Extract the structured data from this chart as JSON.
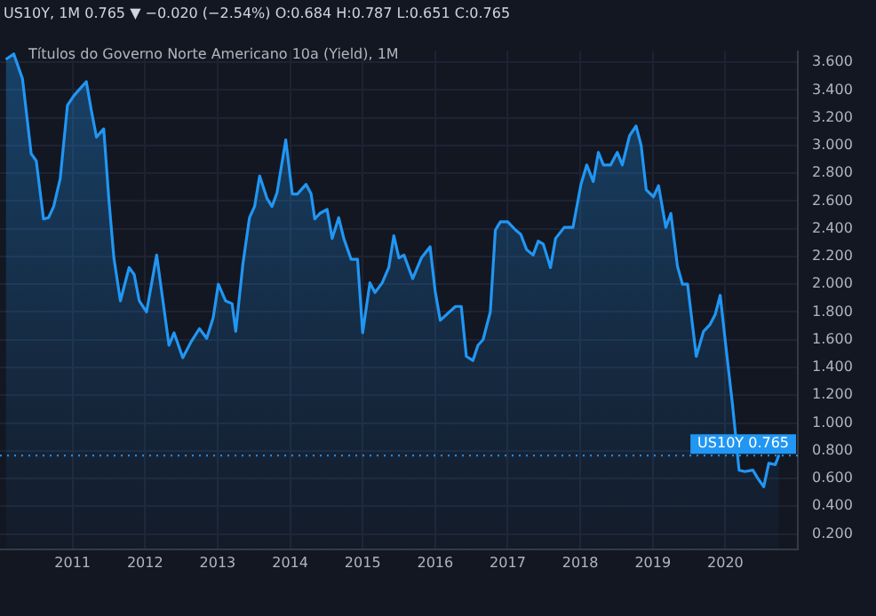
{
  "chart_data": {
    "type": "area",
    "title": "US10Y, 1M 0.765 ▼ −0.020 (−2.54%) O:0.684 H:0.787 L:0.651 C:0.765",
    "subtitle": "Títulos do Governo Norte Americano 10a (Yield), 1M",
    "x": [
      2010.08,
      2010.19,
      2010.31,
      2010.43,
      2010.5,
      2010.6,
      2010.67,
      2010.74,
      2010.83,
      2010.93,
      2011.02,
      2011.19,
      2011.26,
      2011.33,
      2011.43,
      2011.5,
      2011.57,
      2011.66,
      2011.78,
      2011.85,
      2011.92,
      2012.02,
      2012.16,
      2012.33,
      2012.4,
      2012.52,
      2012.64,
      2012.75,
      2012.85,
      2012.94,
      2013.01,
      2013.11,
      2013.2,
      2013.25,
      2013.35,
      2013.44,
      2013.51,
      2013.58,
      2013.68,
      2013.75,
      2013.82,
      2013.94,
      2014.03,
      2014.1,
      2014.22,
      2014.29,
      2014.34,
      2014.41,
      2014.51,
      2014.58,
      2014.67,
      2014.74,
      2014.84,
      2014.93,
      2015.0,
      2015.1,
      2015.17,
      2015.27,
      2015.36,
      2015.43,
      2015.5,
      2015.57,
      2015.69,
      2015.81,
      2015.93,
      2016.0,
      2016.07,
      2016.28,
      2016.36,
      2016.43,
      2016.52,
      2016.59,
      2016.66,
      2016.76,
      2016.83,
      2016.9,
      2017.0,
      2017.11,
      2017.18,
      2017.26,
      2017.35,
      2017.42,
      2017.49,
      2017.59,
      2017.66,
      2017.78,
      2017.9,
      2018.01,
      2018.09,
      2018.18,
      2018.25,
      2018.32,
      2018.42,
      2018.51,
      2018.58,
      2018.68,
      2018.77,
      2018.84,
      2018.91,
      2019.01,
      2019.08,
      2019.18,
      2019.25,
      2019.34,
      2019.41,
      2019.48,
      2019.6,
      2019.7,
      2019.79,
      2019.86,
      2019.93,
      2020.03,
      2020.1,
      2020.19,
      2020.27,
      2020.38,
      2020.45,
      2020.53,
      2020.6,
      2020.69,
      2020.74
    ],
    "series": [
      {
        "color": "#2196f3",
        "values": [
          3.62,
          3.66,
          3.48,
          2.94,
          2.89,
          2.47,
          2.48,
          2.56,
          2.76,
          3.29,
          3.36,
          3.46,
          3.25,
          3.06,
          3.12,
          2.62,
          2.19,
          1.88,
          2.12,
          2.07,
          1.88,
          1.8,
          2.21,
          1.56,
          1.65,
          1.47,
          1.59,
          1.68,
          1.61,
          1.76,
          2.0,
          1.88,
          1.86,
          1.66,
          2.15,
          2.48,
          2.56,
          2.78,
          2.62,
          2.56,
          2.66,
          3.04,
          2.65,
          2.65,
          2.72,
          2.65,
          2.47,
          2.51,
          2.54,
          2.33,
          2.48,
          2.33,
          2.18,
          2.18,
          1.65,
          2.01,
          1.94,
          2.01,
          2.12,
          2.35,
          2.19,
          2.21,
          2.04,
          2.19,
          2.27,
          1.95,
          1.74,
          1.84,
          1.84,
          1.48,
          1.45,
          1.56,
          1.6,
          1.8,
          2.39,
          2.45,
          2.45,
          2.39,
          2.36,
          2.25,
          2.21,
          2.31,
          2.29,
          2.12,
          2.33,
          2.41,
          2.41,
          2.72,
          2.86,
          2.74,
          2.95,
          2.86,
          2.86,
          2.95,
          2.86,
          3.07,
          3.14,
          3.0,
          2.68,
          2.63,
          2.71,
          2.41,
          2.51,
          2.13,
          2.0,
          2.0,
          1.48,
          1.66,
          1.71,
          1.78,
          1.92,
          1.45,
          1.13,
          0.66,
          0.65,
          0.66,
          0.6,
          0.54,
          0.71,
          0.7,
          0.77
        ]
      }
    ],
    "xlim": [
      2010.0,
      2021.0
    ],
    "xticks": [
      2011,
      2012,
      2013,
      2014,
      2015,
      2016,
      2017,
      2018,
      2019,
      2020
    ],
    "ylim": [
      0.09,
      3.68
    ],
    "yticks": [
      {
        "value": 0.2,
        "label": "0.200"
      },
      {
        "value": 0.4,
        "label": "0.400"
      },
      {
        "value": 0.6,
        "label": "0.600"
      },
      {
        "value": 0.8,
        "label": "0.800"
      },
      {
        "value": 1.0,
        "label": "1.000"
      },
      {
        "value": 1.2,
        "label": "1.200"
      },
      {
        "value": 1.4,
        "label": "1.400"
      },
      {
        "value": 1.6,
        "label": "1.600"
      },
      {
        "value": 1.8,
        "label": "1.800"
      },
      {
        "value": 2.0,
        "label": "2.000"
      },
      {
        "value": 2.2,
        "label": "2.200"
      },
      {
        "value": 2.4,
        "label": "2.400"
      },
      {
        "value": 2.6,
        "label": "2.600"
      },
      {
        "value": 2.8,
        "label": "2.800"
      },
      {
        "value": 3.0,
        "label": "3.000"
      },
      {
        "value": 3.2,
        "label": "3.200"
      },
      {
        "value": 3.4,
        "label": "3.400"
      },
      {
        "value": 3.6,
        "label": "3.600"
      }
    ],
    "ref_lines": [
      {
        "axis": "y",
        "value": 0.765,
        "label": "US10Y 0.765",
        "color": "#2196f3",
        "line_style": "dotted"
      }
    ],
    "grid": true,
    "legend": false,
    "marker": "none",
    "line_style": "solid"
  }
}
